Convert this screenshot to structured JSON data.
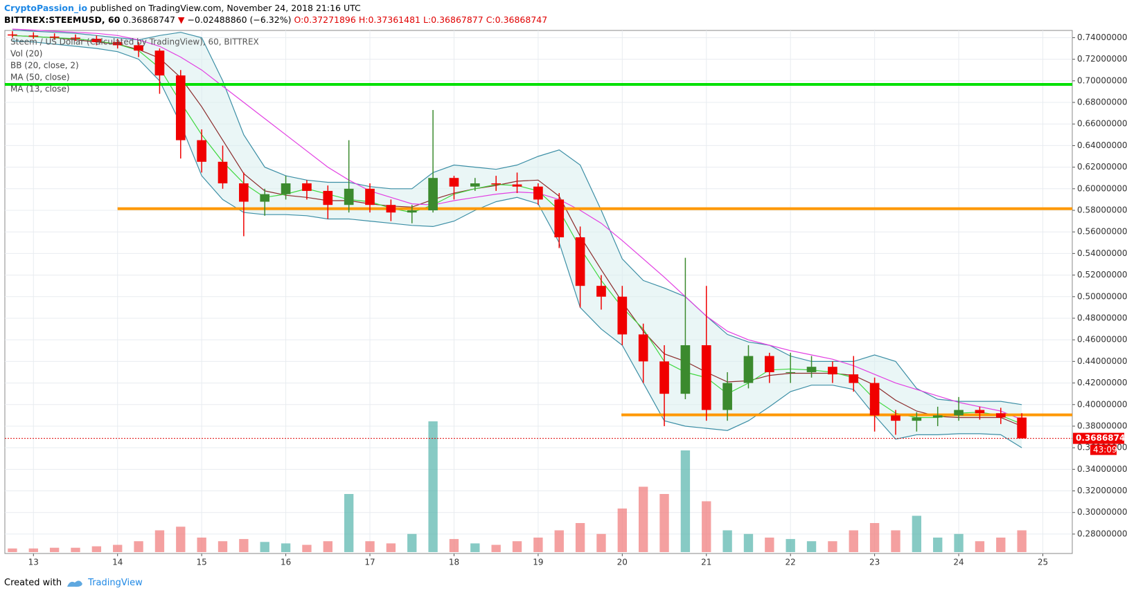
{
  "chart_data": {
    "type": "candlestick",
    "header": {
      "publisher": "CryptoPassion_io",
      "published": "published on TradingView.com, November 24, 2018 21:16 UTC",
      "symbol": "BITTREX:STEEMUSD, 60",
      "arrow": "▼",
      "change": "−0.02488860 (−6.32%)",
      "open": "O:0.37271896",
      "high": "H:0.37361481",
      "low": "L:0.36867877",
      "close": "C:0.36868747"
    },
    "legend": [
      "Steem / US Dollar (Calculated by TradingView), 60, BITTREX",
      "Vol (20)",
      "BB (20, close, 2)",
      "MA (50, close)",
      "MA (13, close)"
    ],
    "footer": {
      "created": "Created with",
      "brand": "TradingView"
    },
    "xlim": [
      12.66,
      25.35
    ],
    "xticks": [
      13,
      14,
      15,
      16,
      17,
      18,
      19,
      20,
      21,
      22,
      23,
      24,
      25
    ],
    "ylim": [
      0.262,
      0.7467
    ],
    "yticks": [
      {
        "value": 0.28,
        "label": "0.28000000"
      },
      {
        "value": 0.3,
        "label": "0.30000000"
      },
      {
        "value": 0.32,
        "label": "0.32000000"
      },
      {
        "value": 0.34,
        "label": "0.34000000"
      },
      {
        "value": 0.36,
        "label": "0.36000000"
      },
      {
        "value": 0.38,
        "label": "0.38000000"
      },
      {
        "value": 0.4,
        "label": "0.40000000"
      },
      {
        "value": 0.42,
        "label": "0.42000000"
      },
      {
        "value": 0.44,
        "label": "0.44000000"
      },
      {
        "value": 0.46,
        "label": "0.46000000"
      },
      {
        "value": 0.48,
        "label": "0.48000000"
      },
      {
        "value": 0.5,
        "label": "0.50000000"
      },
      {
        "value": 0.52,
        "label": "0.52000000"
      },
      {
        "value": 0.54,
        "label": "0.54000000"
      },
      {
        "value": 0.56,
        "label": "0.56000000"
      },
      {
        "value": 0.58,
        "label": "0.58000000"
      },
      {
        "value": 0.6,
        "label": "0.60000000"
      },
      {
        "value": 0.62,
        "label": "0.62000000"
      },
      {
        "value": 0.64,
        "label": "0.64000000"
      },
      {
        "value": 0.66,
        "label": "0.66000000"
      },
      {
        "value": 0.68,
        "label": "0.68000000"
      },
      {
        "value": 0.7,
        "label": "0.70000000"
      },
      {
        "value": 0.72,
        "label": "0.72000000"
      },
      {
        "value": 0.74,
        "label": "0.74000000"
      }
    ],
    "grid": true,
    "up_color": "#3b8a2e",
    "down_color": "#f00000",
    "x": [
      12.75,
      13,
      13.25,
      13.5,
      13.75,
      14,
      14.25,
      14.5,
      14.75,
      15,
      15.25,
      15.5,
      15.75,
      16,
      16.25,
      16.5,
      16.75,
      17,
      17.25,
      17.5,
      17.75,
      18,
      18.25,
      18.5,
      18.75,
      19,
      19.25,
      19.5,
      19.75,
      20,
      20.25,
      20.5,
      20.75,
      21,
      21.25,
      21.5,
      21.75,
      22,
      22.25,
      22.5,
      22.75,
      23,
      23.25,
      23.5,
      23.75,
      24,
      24.25,
      24.5,
      24.75
    ],
    "open": [
      0.743,
      0.742,
      0.741,
      0.74,
      0.739,
      0.736,
      0.733,
      0.728,
      0.705,
      0.645,
      0.625,
      0.605,
      0.588,
      0.595,
      0.605,
      0.598,
      0.585,
      0.6,
      0.585,
      0.578,
      0.58,
      0.61,
      0.602,
      0.605,
      0.604,
      0.602,
      0.59,
      0.555,
      0.51,
      0.5,
      0.465,
      0.44,
      0.41,
      0.455,
      0.395,
      0.42,
      0.445,
      0.43,
      0.43,
      0.435,
      0.428,
      0.42,
      0.39,
      0.385,
      0.388,
      0.39,
      0.395,
      0.392,
      0.388
    ],
    "high": [
      0.746,
      0.745,
      0.744,
      0.743,
      0.742,
      0.739,
      0.736,
      0.73,
      0.71,
      0.655,
      0.64,
      0.615,
      0.6,
      0.612,
      0.608,
      0.603,
      0.645,
      0.605,
      0.59,
      0.585,
      0.673,
      0.612,
      0.61,
      0.612,
      0.615,
      0.605,
      0.596,
      0.565,
      0.52,
      0.51,
      0.475,
      0.455,
      0.536,
      0.51,
      0.43,
      0.455,
      0.448,
      0.448,
      0.445,
      0.44,
      0.445,
      0.425,
      0.395,
      0.393,
      0.398,
      0.407,
      0.398,
      0.397,
      0.392
    ],
    "low": [
      0.74,
      0.739,
      0.738,
      0.737,
      0.733,
      0.73,
      0.722,
      0.688,
      0.628,
      0.615,
      0.6,
      0.556,
      0.575,
      0.59,
      0.59,
      0.572,
      0.578,
      0.578,
      0.57,
      0.568,
      0.578,
      0.59,
      0.598,
      0.598,
      0.596,
      0.585,
      0.545,
      0.49,
      0.488,
      0.455,
      0.42,
      0.38,
      0.405,
      0.385,
      0.385,
      0.415,
      0.42,
      0.42,
      0.425,
      0.42,
      0.412,
      0.375,
      0.372,
      0.375,
      0.38,
      0.385,
      0.386,
      0.382,
      0.36867877
    ],
    "close": [
      0.742,
      0.741,
      0.74,
      0.739,
      0.736,
      0.733,
      0.728,
      0.705,
      0.645,
      0.625,
      0.605,
      0.588,
      0.595,
      0.605,
      0.598,
      0.585,
      0.6,
      0.585,
      0.578,
      0.58,
      0.61,
      0.602,
      0.605,
      0.604,
      0.602,
      0.59,
      0.555,
      0.51,
      0.5,
      0.465,
      0.44,
      0.41,
      0.455,
      0.395,
      0.42,
      0.445,
      0.43,
      0.43,
      0.435,
      0.428,
      0.42,
      0.39,
      0.385,
      0.388,
      0.39,
      0.395,
      0.392,
      0.388,
      0.36868747
    ],
    "volume": [
      5,
      5,
      6,
      6,
      8,
      10,
      15,
      30,
      35,
      20,
      15,
      18,
      14,
      12,
      10,
      15,
      80,
      15,
      12,
      25,
      180,
      18,
      12,
      10,
      15,
      20,
      30,
      40,
      25,
      60,
      90,
      80,
      140,
      70,
      30,
      25,
      20,
      18,
      15,
      15,
      30,
      40,
      30,
      50,
      20,
      25,
      15,
      20,
      30
    ],
    "indicators": [
      {
        "name": "BB upper",
        "color": "#3b8ea5",
        "values": [
          0.747,
          0.746,
          0.745,
          0.744,
          0.742,
          0.74,
          0.738,
          0.742,
          0.745,
          0.74,
          0.7,
          0.65,
          0.62,
          0.612,
          0.608,
          0.606,
          0.606,
          0.602,
          0.6,
          0.6,
          0.615,
          0.622,
          0.62,
          0.618,
          0.622,
          0.63,
          0.636,
          0.622,
          0.58,
          0.535,
          0.515,
          0.508,
          0.5,
          0.482,
          0.465,
          0.458,
          0.455,
          0.445,
          0.44,
          0.44,
          0.44,
          0.446,
          0.44,
          0.415,
          0.405,
          0.403,
          0.403,
          0.403,
          0.4
        ]
      },
      {
        "name": "BB lower",
        "color": "#3b8ea5",
        "values": [
          0.737,
          0.736,
          0.734,
          0.732,
          0.73,
          0.727,
          0.72,
          0.7,
          0.66,
          0.612,
          0.59,
          0.578,
          0.576,
          0.576,
          0.575,
          0.572,
          0.572,
          0.57,
          0.568,
          0.566,
          0.565,
          0.57,
          0.58,
          0.588,
          0.592,
          0.586,
          0.55,
          0.49,
          0.47,
          0.455,
          0.42,
          0.385,
          0.38,
          0.378,
          0.376,
          0.385,
          0.398,
          0.412,
          0.418,
          0.418,
          0.414,
          0.39,
          0.368,
          0.372,
          0.372,
          0.373,
          0.373,
          0.372,
          0.36
        ]
      },
      {
        "name": "BB basis",
        "color": "#8b2b2b",
        "values": [
          0.742,
          0.741,
          0.74,
          0.738,
          0.736,
          0.734,
          0.729,
          0.721,
          0.703,
          0.676,
          0.645,
          0.614,
          0.598,
          0.594,
          0.592,
          0.589,
          0.589,
          0.586,
          0.584,
          0.583,
          0.59,
          0.596,
          0.6,
          0.603,
          0.607,
          0.608,
          0.593,
          0.556,
          0.525,
          0.495,
          0.468,
          0.447,
          0.44,
          0.43,
          0.421,
          0.422,
          0.427,
          0.429,
          0.429,
          0.429,
          0.427,
          0.418,
          0.404,
          0.394,
          0.389,
          0.388,
          0.388,
          0.388,
          0.38
        ]
      },
      {
        "name": "MA 50",
        "color": "#e23ee2",
        "values": [
          0.748,
          0.747,
          0.746,
          0.745,
          0.744,
          0.742,
          0.738,
          0.732,
          0.722,
          0.71,
          0.695,
          0.68,
          0.665,
          0.65,
          0.635,
          0.62,
          0.608,
          0.598,
          0.592,
          0.586,
          0.585,
          0.589,
          0.592,
          0.595,
          0.597,
          0.596,
          0.59,
          0.58,
          0.568,
          0.552,
          0.535,
          0.518,
          0.5,
          0.482,
          0.468,
          0.46,
          0.455,
          0.45,
          0.446,
          0.442,
          0.436,
          0.428,
          0.42,
          0.414,
          0.408,
          0.402,
          0.398,
          0.394,
          0.386
        ]
      },
      {
        "name": "MA 13",
        "color": "#3fd83f",
        "values": [
          0.742,
          0.741,
          0.74,
          0.739,
          0.737,
          0.734,
          0.728,
          0.712,
          0.68,
          0.65,
          0.625,
          0.605,
          0.592,
          0.595,
          0.6,
          0.595,
          0.59,
          0.588,
          0.582,
          0.578,
          0.585,
          0.595,
          0.6,
          0.604,
          0.603,
          0.598,
          0.58,
          0.545,
          0.515,
          0.49,
          0.47,
          0.44,
          0.43,
          0.425,
          0.41,
          0.42,
          0.432,
          0.433,
          0.432,
          0.43,
          0.425,
          0.405,
          0.392,
          0.388,
          0.388,
          0.392,
          0.393,
          0.39,
          0.382
        ]
      }
    ],
    "levels": [
      {
        "value": 0.6967,
        "color": "#00e000",
        "from": 12.66
      },
      {
        "value": 0.5815,
        "color": "#ff9800",
        "from": 14.0
      },
      {
        "value": 0.3905,
        "color": "#ff9800",
        "from": 19.99
      }
    ],
    "last_price": 0.36868747,
    "countdown": "43:09"
  }
}
